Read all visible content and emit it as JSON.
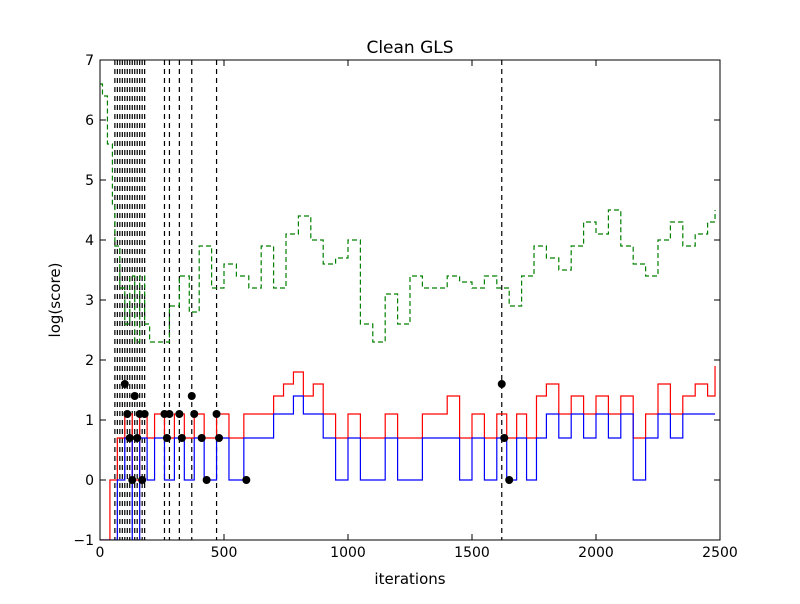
{
  "chart_data": {
    "type": "line",
    "title": "Clean GLS",
    "xlabel": "iterations",
    "ylabel": "log(score)",
    "xlim": [
      0,
      2500
    ],
    "ylim": [
      -1,
      7
    ],
    "xticks": [
      0,
      500,
      1000,
      1500,
      2000,
      2500
    ],
    "yticks": [
      -1,
      0,
      1,
      2,
      3,
      4,
      5,
      6,
      7
    ],
    "grid": false,
    "legend": "none",
    "colors": {
      "red": "#ff0000",
      "blue": "#0000ff",
      "green": "#008000",
      "black": "#000000"
    },
    "series": [
      {
        "style": "red solid line",
        "x": [
          0,
          40,
          70,
          100,
          130,
          160,
          190,
          220,
          260,
          300,
          340,
          380,
          420,
          470,
          520,
          580,
          640,
          700,
          740,
          780,
          820,
          860,
          900,
          950,
          1000,
          1050,
          1100,
          1150,
          1200,
          1250,
          1300,
          1350,
          1400,
          1450,
          1500,
          1550,
          1600,
          1640,
          1680,
          1720,
          1760,
          1800,
          1850,
          1900,
          1950,
          2000,
          2050,
          2100,
          2150,
          2200,
          2250,
          2300,
          2350,
          2400,
          2450,
          2480
        ],
        "y": [
          -1,
          0,
          0.7,
          1.1,
          0,
          1.1,
          0.7,
          1.1,
          0.7,
          1.1,
          0.7,
          1.1,
          0.7,
          1.1,
          0.7,
          1.1,
          1.1,
          1.4,
          1.6,
          1.8,
          1.4,
          1.6,
          1.1,
          0.7,
          1.1,
          0.7,
          0.7,
          1.1,
          0.7,
          0.7,
          1.1,
          1.1,
          1.4,
          0.7,
          1.1,
          0.7,
          1.1,
          0.7,
          1.1,
          0.7,
          1.4,
          1.6,
          1.1,
          1.4,
          1.1,
          1.4,
          1.1,
          1.4,
          0.7,
          1.1,
          1.6,
          1.1,
          1.4,
          1.6,
          1.4,
          1.9
        ]
      },
      {
        "style": "blue solid line",
        "x": [
          0,
          40,
          70,
          100,
          130,
          160,
          190,
          220,
          260,
          300,
          340,
          380,
          420,
          470,
          520,
          580,
          640,
          700,
          740,
          780,
          820,
          860,
          900,
          950,
          1000,
          1050,
          1100,
          1150,
          1200,
          1250,
          1300,
          1350,
          1400,
          1450,
          1500,
          1550,
          1600,
          1640,
          1680,
          1720,
          1760,
          1800,
          1850,
          1900,
          1950,
          2000,
          2050,
          2100,
          2150,
          2200,
          2250,
          2300,
          2350,
          2400,
          2450,
          2480
        ],
        "y": [
          -1,
          -1,
          0,
          0.7,
          -1,
          0.7,
          0,
          0.7,
          0,
          0.7,
          0,
          0.7,
          0,
          0.7,
          0,
          0.7,
          0.7,
          1.1,
          1.1,
          1.4,
          1.1,
          1.1,
          0.7,
          0,
          0.7,
          0,
          0,
          0.7,
          0,
          0,
          0.7,
          0.7,
          0.7,
          0,
          0.7,
          0,
          0.7,
          0,
          0.7,
          0,
          0.7,
          1.1,
          0.7,
          1.1,
          0.7,
          1.1,
          0.7,
          1.1,
          0,
          0.7,
          1.1,
          0.7,
          1.1,
          1.1,
          1.1,
          1.1
        ]
      },
      {
        "style": "green dashed line",
        "x": [
          0,
          10,
          30,
          50,
          60,
          80,
          100,
          120,
          140,
          160,
          180,
          200,
          240,
          280,
          320,
          360,
          400,
          450,
          500,
          550,
          600,
          650,
          700,
          750,
          800,
          850,
          900,
          950,
          1000,
          1050,
          1100,
          1150,
          1200,
          1250,
          1300,
          1350,
          1400,
          1450,
          1500,
          1550,
          1600,
          1650,
          1700,
          1750,
          1800,
          1850,
          1900,
          1950,
          2000,
          2050,
          2100,
          2150,
          2200,
          2250,
          2300,
          2350,
          2400,
          2450,
          2480
        ],
        "y": [
          6.6,
          6.4,
          5.6,
          4.6,
          3.9,
          3.2,
          2.6,
          3.4,
          2.3,
          3.4,
          2.6,
          2.3,
          2.3,
          2.9,
          3.4,
          2.8,
          3.9,
          3.2,
          3.6,
          3.4,
          3.2,
          3.9,
          3.2,
          4.1,
          4.4,
          4.0,
          3.6,
          3.7,
          4.0,
          2.6,
          2.3,
          3.1,
          2.6,
          3.4,
          3.2,
          3.2,
          3.4,
          3.3,
          3.2,
          3.4,
          3.2,
          2.9,
          3.4,
          3.9,
          3.7,
          3.5,
          3.9,
          4.3,
          4.1,
          4.5,
          3.9,
          3.6,
          3.4,
          4.0,
          4.3,
          3.9,
          4.1,
          4.3,
          4.5
        ]
      },
      {
        "style": "black circle markers",
        "x": [
          100,
          110,
          120,
          130,
          140,
          150,
          160,
          170,
          180,
          260,
          270,
          280,
          320,
          330,
          370,
          380,
          410,
          430,
          470,
          480,
          590,
          1620,
          1630,
          1650
        ],
        "y": [
          1.6,
          1.1,
          0.7,
          0,
          1.4,
          0.7,
          1.1,
          0,
          1.1,
          1.1,
          0.7,
          1.1,
          1.1,
          0.7,
          1.4,
          1.1,
          0.7,
          0,
          1.1,
          0.7,
          0,
          1.6,
          0.7,
          0
        ]
      }
    ],
    "vertical_lines": {
      "style": "black dashed",
      "x": [
        60,
        70,
        80,
        90,
        100,
        110,
        120,
        130,
        140,
        150,
        160,
        170,
        180,
        260,
        280,
        320,
        370,
        470,
        1620
      ]
    }
  }
}
